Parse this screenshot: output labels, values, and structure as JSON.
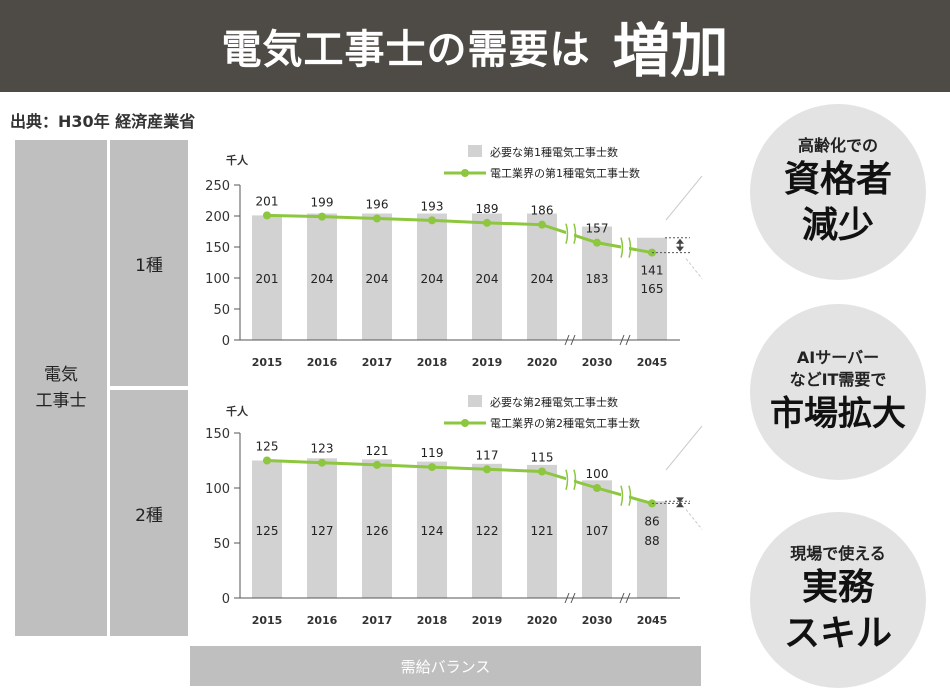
{
  "banner": {
    "title": "電気工事士の需要は",
    "emphasis": "増加"
  },
  "source": "出典：H30年 経済産業省",
  "labels": {
    "main_line1": "電気",
    "main_line2": "工事士",
    "type1": "1種",
    "type2": "2種",
    "supply_balance": "需給バランス"
  },
  "colors": {
    "bar": "#d2d2d2",
    "line": "#8dc63f",
    "banner": "#4e4b46",
    "panel": "#bfbfbf"
  },
  "chart_data": [
    {
      "type": "bar",
      "title": "第1種電気工事士",
      "unit": "千人",
      "categories": [
        "2015",
        "2016",
        "2017",
        "2018",
        "2019",
        "2020",
        "2030",
        "2045"
      ],
      "ylim": [
        0,
        250
      ],
      "yticks": [
        "0",
        "50",
        "100",
        "150",
        "200",
        "250"
      ],
      "legend": [
        "必要な第1種電気工事士数",
        "電工業界の第1種電気工事士数"
      ],
      "series": [
        {
          "name": "必要な第1種電気工事士数",
          "kind": "bar",
          "values": [
            201,
            204,
            204,
            204,
            204,
            204,
            183,
            165
          ]
        },
        {
          "name": "電工業界の第1種電気工事士数",
          "kind": "line",
          "values": [
            201,
            199,
            196,
            193,
            189,
            186,
            157,
            141
          ]
        }
      ]
    },
    {
      "type": "bar",
      "title": "第2種電気工事士",
      "unit": "千人",
      "categories": [
        "2015",
        "2016",
        "2017",
        "2018",
        "2019",
        "2020",
        "2030",
        "2045"
      ],
      "ylim": [
        0,
        150
      ],
      "yticks": [
        "0",
        "50",
        "100",
        "150"
      ],
      "legend": [
        "必要な第2種電気工事士数",
        "電工業界の第2種電気工事士数"
      ],
      "series": [
        {
          "name": "必要な第2種電気工事士数",
          "kind": "bar",
          "values": [
            125,
            127,
            126,
            124,
            122,
            121,
            107,
            88
          ]
        },
        {
          "name": "電工業界の第2種電気工事士数",
          "kind": "line",
          "values": [
            125,
            123,
            121,
            119,
            117,
            115,
            100,
            86
          ]
        }
      ]
    }
  ],
  "circles": [
    {
      "small": "高齢化での",
      "big1": "資格者",
      "big2": "減少"
    },
    {
      "small1": "AIサーバー",
      "small2": "などIT需要で",
      "big1": "市場拡大"
    },
    {
      "small": "現場で使える",
      "big1": "実務",
      "big2": "スキル"
    }
  ]
}
